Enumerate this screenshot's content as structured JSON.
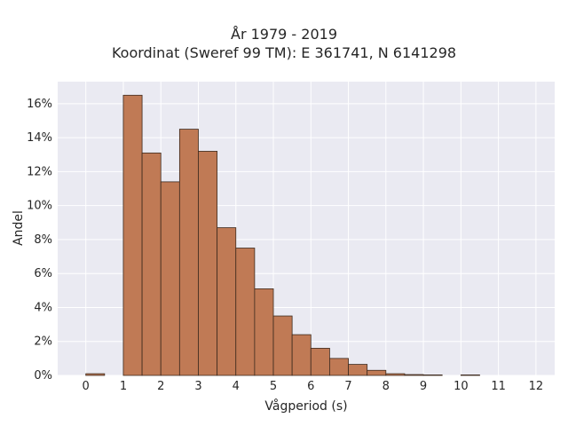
{
  "chart_data": {
    "type": "bar",
    "title": "År 1979 - 2019",
    "subtitle": "Koordinat (Sweref 99 TM): E 361741, N 6141298",
    "xlabel": "Vågperiod (s)",
    "ylabel": "Andel",
    "xlim": [
      -0.75,
      12.5
    ],
    "ylim": [
      0,
      0.173
    ],
    "x_ticks": [
      0,
      1,
      2,
      3,
      4,
      5,
      6,
      7,
      8,
      9,
      10,
      11,
      12
    ],
    "y_ticks": [
      0,
      0.02,
      0.04,
      0.06,
      0.08,
      0.1,
      0.12,
      0.14,
      0.16
    ],
    "y_tick_labels": [
      "0%",
      "2%",
      "4%",
      "6%",
      "8%",
      "10%",
      "12%",
      "14%",
      "16%"
    ],
    "bin_width": 0.5,
    "bins": [
      {
        "x0": 0.0,
        "value": 0.001
      },
      {
        "x0": 1.0,
        "value": 0.165
      },
      {
        "x0": 1.5,
        "value": 0.131
      },
      {
        "x0": 2.0,
        "value": 0.114
      },
      {
        "x0": 2.5,
        "value": 0.145
      },
      {
        "x0": 3.0,
        "value": 0.132
      },
      {
        "x0": 3.5,
        "value": 0.087
      },
      {
        "x0": 4.0,
        "value": 0.075
      },
      {
        "x0": 4.5,
        "value": 0.051
      },
      {
        "x0": 5.0,
        "value": 0.035
      },
      {
        "x0": 5.5,
        "value": 0.024
      },
      {
        "x0": 6.0,
        "value": 0.016
      },
      {
        "x0": 6.5,
        "value": 0.01
      },
      {
        "x0": 7.0,
        "value": 0.0065
      },
      {
        "x0": 7.5,
        "value": 0.003
      },
      {
        "x0": 8.0,
        "value": 0.001
      },
      {
        "x0": 8.5,
        "value": 0.0005
      },
      {
        "x0": 9.0,
        "value": 0.0003
      },
      {
        "x0": 10.0,
        "value": 0.0003
      }
    ],
    "grid": true,
    "colors": {
      "bar_fill": "#c07a55",
      "bar_edge": "#3d2a1e",
      "plot_background": "#eaeaf2",
      "grid": "#ffffff"
    }
  }
}
